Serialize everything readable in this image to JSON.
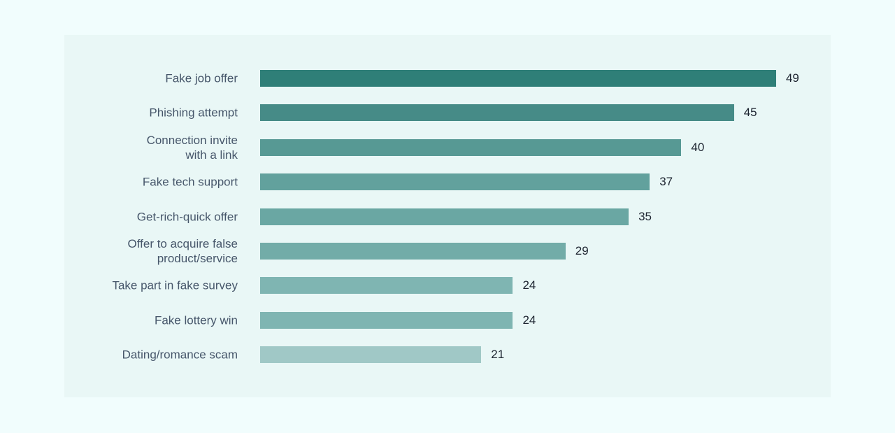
{
  "chart_data": {
    "type": "bar",
    "orientation": "horizontal",
    "categories": [
      "Fake job offer",
      "Phishing attempt",
      "Connection invite\nwith a link",
      "Fake tech support",
      "Get-rich-quick offer",
      "Offer to acquire false\nproduct/service",
      "Take part in fake survey",
      "Fake lottery win",
      "Dating/romance scam"
    ],
    "values": [
      49,
      45,
      40,
      37,
      35,
      29,
      24,
      24,
      21
    ],
    "colors": [
      "#2f7f78",
      "#468b87",
      "#579994",
      "#62a19d",
      "#6aa7a3",
      "#72aca8",
      "#7fb5b2",
      "#7fb5b2",
      "#a0c8c6"
    ]
  }
}
